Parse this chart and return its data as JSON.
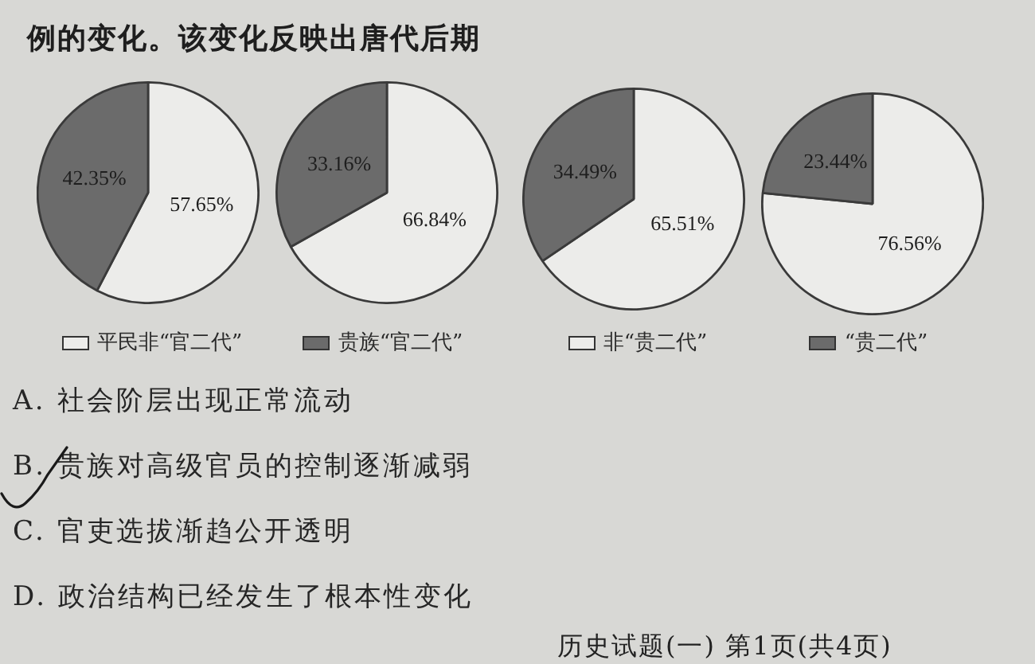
{
  "chart_data": [
    {
      "type": "other",
      "annotations": [
        "例的变化。该变化反映出唐代后期"
      ]
    },
    {
      "type": "pie",
      "categories": [
        "平民非“官二代”",
        "贵族“官二代”"
      ],
      "values": [
        57.65,
        42.35
      ],
      "colors": [
        "#ececea",
        "#6b6b6b"
      ],
      "value_labels": [
        "57.65%",
        "42.35%"
      ],
      "legend": "bottom"
    },
    {
      "type": "pie",
      "categories": [
        null,
        null
      ],
      "values": [
        66.84,
        33.16
      ],
      "colors": [
        "#ececea",
        "#6b6b6b"
      ],
      "value_labels": [
        "66.84%",
        "33.16%"
      ]
    },
    {
      "type": "pie",
      "categories": [
        "非“贵二代”",
        "“贵二代”"
      ],
      "values": [
        65.51,
        34.49
      ],
      "colors": [
        "#ececea",
        "#6b6b6b"
      ],
      "value_labels": [
        "65.51%",
        "34.49%"
      ],
      "legend": "bottom"
    },
    {
      "type": "pie",
      "categories": [
        null,
        null
      ],
      "values": [
        76.56,
        23.44
      ],
      "colors": [
        "#ececea",
        "#6b6b6b"
      ],
      "value_labels": [
        "76.56%",
        "23.44%"
      ]
    },
    {
      "type": "other",
      "annotations": [
        "A. 社会阶层出现正常流动",
        "B. 贵族对高级官员的控制逐渐减弱",
        "C. 官吏选拔渐趋公开透明",
        "D. 政治结构已经发生了根本性变化"
      ]
    },
    {
      "type": "other",
      "annotations": [
        "历史试题(一) 第1页(共4页)"
      ]
    }
  ]
}
